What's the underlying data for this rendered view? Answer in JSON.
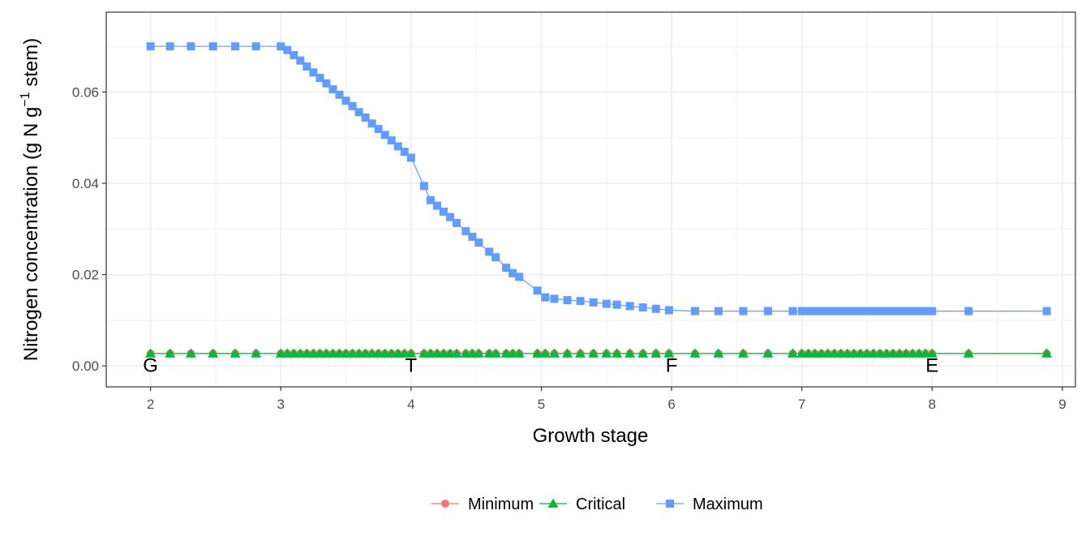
{
  "chart_data": {
    "type": "line",
    "xlabel": "Growth stage",
    "ylabel": {
      "main": "Nitrogen concentration (g N g",
      "superscript": "−1",
      "tail": " stem)"
    },
    "xlim": [
      1.66,
      9.1
    ],
    "ylim": [
      -0.0046,
      0.0775
    ],
    "x_ticks": [
      2,
      3,
      4,
      5,
      6,
      7,
      8,
      9
    ],
    "y_ticks": [
      0.0,
      0.02,
      0.04,
      0.06
    ],
    "y_tick_labels": [
      "0.00",
      "0.02",
      "0.04",
      "0.06"
    ],
    "grid": true,
    "legend_position": "bottom",
    "stage_labels": [
      {
        "x": 2,
        "label": "G"
      },
      {
        "x": 4,
        "label": "T"
      },
      {
        "x": 6,
        "label": "F"
      },
      {
        "x": 8,
        "label": "E"
      }
    ],
    "series": [
      {
        "name": "Minimum",
        "color": "#F8766D",
        "marker": "circle",
        "x": [
          2,
          2.15,
          2.31,
          2.48,
          2.65,
          2.81,
          3.0,
          3.05,
          3.1,
          3.15,
          3.2,
          3.25,
          3.3,
          3.35,
          3.4,
          3.45,
          3.5,
          3.55,
          3.6,
          3.65,
          3.7,
          3.75,
          3.8,
          3.85,
          3.9,
          3.95,
          4.0,
          4.1,
          4.15,
          4.2,
          4.25,
          4.3,
          4.35,
          4.42,
          4.47,
          4.52,
          4.6,
          4.65,
          4.73,
          4.78,
          4.83,
          4.97,
          5.03,
          5.1,
          5.2,
          5.3,
          5.4,
          5.5,
          5.58,
          5.68,
          5.78,
          5.88,
          5.98,
          6.18,
          6.36,
          6.55,
          6.74,
          6.93,
          7.0,
          7.05,
          7.1,
          7.15,
          7.2,
          7.25,
          7.3,
          7.35,
          7.4,
          7.45,
          7.5,
          7.55,
          7.6,
          7.65,
          7.7,
          7.75,
          7.8,
          7.85,
          7.9,
          7.95,
          8.0,
          8.28,
          8.88
        ],
        "y_constant": 0.0027
      },
      {
        "name": "Critical",
        "color": "#00BA38",
        "marker": "triangle",
        "x": [
          2,
          2.15,
          2.31,
          2.48,
          2.65,
          2.81,
          3.0,
          3.05,
          3.1,
          3.15,
          3.2,
          3.25,
          3.3,
          3.35,
          3.4,
          3.45,
          3.5,
          3.55,
          3.6,
          3.65,
          3.7,
          3.75,
          3.8,
          3.85,
          3.9,
          3.95,
          4.0,
          4.1,
          4.15,
          4.2,
          4.25,
          4.3,
          4.35,
          4.42,
          4.47,
          4.52,
          4.6,
          4.65,
          4.73,
          4.78,
          4.83,
          4.97,
          5.03,
          5.1,
          5.2,
          5.3,
          5.4,
          5.5,
          5.58,
          5.68,
          5.78,
          5.88,
          5.98,
          6.18,
          6.36,
          6.55,
          6.74,
          6.93,
          7.0,
          7.05,
          7.1,
          7.15,
          7.2,
          7.25,
          7.3,
          7.35,
          7.4,
          7.45,
          7.5,
          7.55,
          7.6,
          7.65,
          7.7,
          7.75,
          7.8,
          7.85,
          7.9,
          7.95,
          8.0,
          8.28,
          8.88
        ],
        "y_constant": 0.0027
      },
      {
        "name": "Maximum",
        "color": "#619CFF",
        "marker": "square",
        "x": [
          2,
          2.15,
          2.31,
          2.48,
          2.65,
          2.81,
          3.0,
          3.05,
          3.1,
          3.15,
          3.2,
          3.25,
          3.3,
          3.35,
          3.4,
          3.45,
          3.5,
          3.55,
          3.6,
          3.65,
          3.7,
          3.75,
          3.8,
          3.85,
          3.9,
          3.95,
          4.0,
          4.1,
          4.15,
          4.2,
          4.25,
          4.3,
          4.35,
          4.42,
          4.47,
          4.52,
          4.6,
          4.65,
          4.73,
          4.78,
          4.83,
          4.97,
          5.03,
          5.1,
          5.2,
          5.3,
          5.4,
          5.5,
          5.58,
          5.68,
          5.78,
          5.88,
          5.98,
          6.18,
          6.36,
          6.55,
          6.74,
          6.93,
          7.0,
          7.05,
          7.1,
          7.15,
          7.2,
          7.25,
          7.3,
          7.35,
          7.4,
          7.45,
          7.5,
          7.55,
          7.6,
          7.65,
          7.7,
          7.75,
          7.8,
          7.85,
          7.9,
          7.95,
          8.0,
          8.28,
          8.88
        ],
        "y": [
          0.07,
          0.07,
          0.07,
          0.07,
          0.07,
          0.07,
          0.07,
          0.0692,
          0.0681,
          0.0669,
          0.0656,
          0.0643,
          0.0631,
          0.0619,
          0.0606,
          0.0594,
          0.0581,
          0.0569,
          0.0556,
          0.0544,
          0.0531,
          0.0519,
          0.0506,
          0.0494,
          0.0481,
          0.0469,
          0.0456,
          0.0394,
          0.0363,
          0.0351,
          0.0338,
          0.0326,
          0.0313,
          0.0295,
          0.0283,
          0.027,
          0.025,
          0.0238,
          0.0215,
          0.0203,
          0.0195,
          0.0165,
          0.015,
          0.0147,
          0.0144,
          0.0142,
          0.0139,
          0.0136,
          0.0134,
          0.0131,
          0.0128,
          0.0125,
          0.0122,
          0.012,
          0.012,
          0.012,
          0.012,
          0.012,
          0.012,
          0.012,
          0.012,
          0.012,
          0.012,
          0.012,
          0.012,
          0.012,
          0.012,
          0.012,
          0.012,
          0.012,
          0.012,
          0.012,
          0.012,
          0.012,
          0.012,
          0.012,
          0.012,
          0.012,
          0.012,
          0.012,
          0.012
        ]
      }
    ]
  }
}
